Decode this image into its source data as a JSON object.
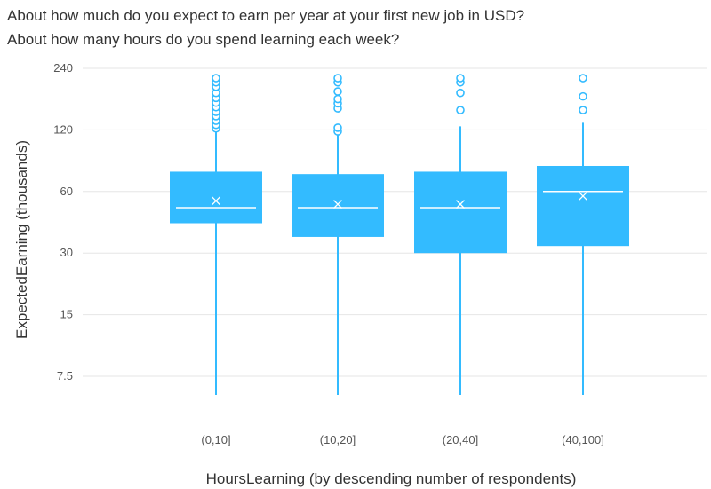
{
  "chart_data": {
    "type": "boxplot",
    "title_lines": [
      "About how much do you expect to earn per year at your first new job in USD?",
      "About how many hours do you spend learning each week?"
    ],
    "xlabel": "HoursLearning (by descending number of respondents)",
    "ylabel": "ExpectedEarning (thousands)",
    "y_scale": "log",
    "ylim": [
      5.5,
      280
    ],
    "y_ticks": [
      7.5,
      15,
      30,
      60,
      120,
      240
    ],
    "y_tick_labels": [
      "7.5",
      "15",
      "30",
      "60",
      "120",
      "240"
    ],
    "grid": true,
    "color": "#33bbff",
    "categories": [
      "(0,10]",
      "(10,20]",
      "(20,40]",
      "(40,100]"
    ],
    "boxes": [
      {
        "category": "(0,10]",
        "whisker_low": 5.6,
        "q1": 42,
        "median": 50,
        "q3": 75,
        "whisker_high": 118,
        "mean": 54,
        "outliers": [
          122,
          127,
          133,
          140,
          147,
          155,
          163,
          172,
          182,
          195,
          205,
          215
        ]
      },
      {
        "category": "(10,20]",
        "whisker_low": 5.6,
        "q1": 36,
        "median": 50,
        "q3": 73,
        "whisker_high": 115,
        "mean": 52,
        "outliers": [
          118,
          123,
          153,
          162,
          170,
          185,
          205,
          215
        ]
      },
      {
        "category": "(20,40]",
        "whisker_low": 5.6,
        "q1": 30,
        "median": 50,
        "q3": 75,
        "whisker_high": 125,
        "mean": 52,
        "outliers": [
          150,
          182,
          205,
          215
        ]
      },
      {
        "category": "(40,100]",
        "whisker_low": 5.6,
        "q1": 32.5,
        "median": 60,
        "q3": 80,
        "whisker_high": 130,
        "mean": 57,
        "outliers": [
          150,
          175,
          215
        ]
      }
    ]
  }
}
